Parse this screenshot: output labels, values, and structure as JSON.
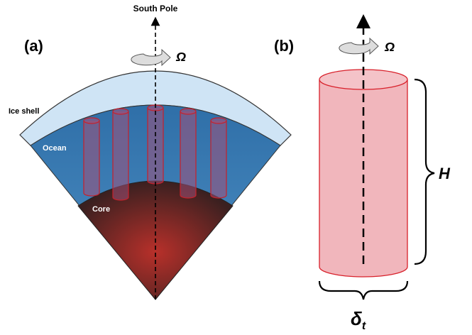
{
  "panel_a": {
    "label": "(a)",
    "axis_label": "South Pole",
    "rotation_symbol": "Ω",
    "layers": {
      "ice": "Ice shell",
      "ocean": "Ocean",
      "core": "Core"
    }
  },
  "panel_b": {
    "label": "(b)",
    "rotation_symbol": "Ω",
    "height_symbol": "H",
    "width_symbol": {
      "symbol": "δ",
      "subscript": "t"
    }
  }
}
